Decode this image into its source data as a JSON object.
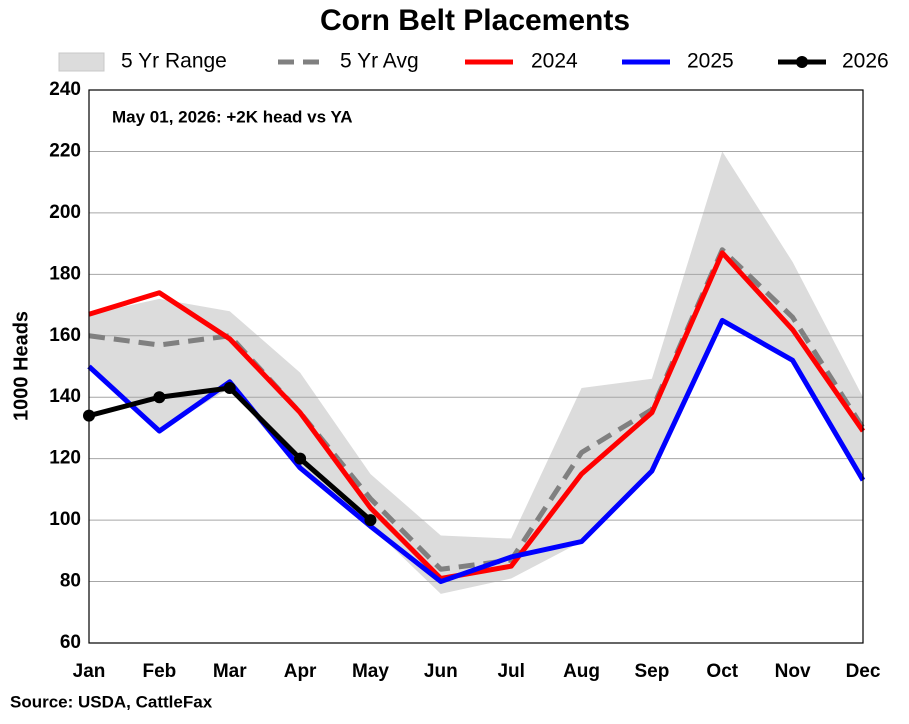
{
  "chart_data": {
    "type": "line",
    "title": "Corn Belt Placements",
    "annotation": "May 01, 2026: +2K head vs YA",
    "source": "Source: USDA, CattleFax",
    "ylabel": "1000 Heads",
    "categories": [
      "Jan",
      "Feb",
      "Mar",
      "Apr",
      "May",
      "Jun",
      "Jul",
      "Aug",
      "Sep",
      "Oct",
      "Nov",
      "Dec"
    ],
    "range": {
      "name": "5 Yr Range",
      "color": "#dcdcdc",
      "upper": [
        167,
        172,
        168,
        148,
        115,
        95,
        94,
        143,
        146,
        220,
        184,
        140
      ],
      "lower": [
        150,
        129,
        143,
        116,
        98,
        76,
        81,
        93,
        116,
        165,
        152,
        113
      ]
    },
    "series": [
      {
        "name": "5 Yr Avg",
        "color": "#808080",
        "dash": true,
        "values": [
          160,
          157,
          160,
          135,
          107,
          84,
          87,
          122,
          136,
          188,
          166,
          130
        ]
      },
      {
        "name": "2024",
        "color": "#ff0000",
        "values": [
          167,
          174,
          159,
          135,
          104,
          81,
          85,
          115,
          135,
          187,
          162,
          129
        ]
      },
      {
        "name": "2025",
        "color": "#0000ff",
        "values": [
          150,
          129,
          145,
          117,
          98,
          80,
          88,
          93,
          116,
          165,
          152,
          113
        ]
      },
      {
        "name": "2026",
        "color": "#000000",
        "marker": true,
        "values": [
          134,
          140,
          143,
          120,
          100,
          null,
          null,
          null,
          null,
          null,
          null,
          null
        ]
      }
    ],
    "ylim": [
      60,
      240
    ],
    "yticks": [
      60,
      80,
      100,
      120,
      140,
      160,
      180,
      200,
      220,
      240
    ],
    "grid": true
  }
}
